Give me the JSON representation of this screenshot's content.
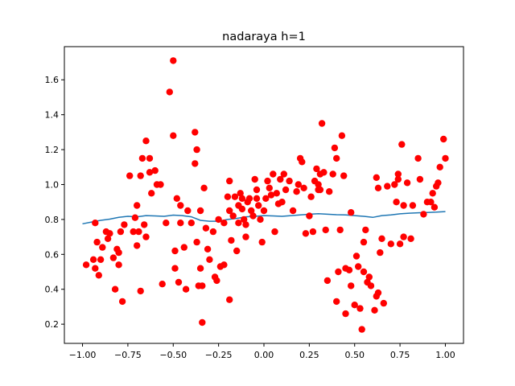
{
  "chart_data": {
    "type": "scatter",
    "title": "nadaraya h=1",
    "xlabel": "",
    "ylabel": "",
    "xlim": [
      -1.1,
      1.1
    ],
    "ylim": [
      0.09,
      1.79
    ],
    "x_ticks": [
      -1.0,
      -0.75,
      -0.5,
      -0.25,
      0.0,
      0.25,
      0.5,
      0.75,
      1.0
    ],
    "x_tick_labels": [
      "−1.00",
      "−0.75",
      "−0.50",
      "−0.25",
      "0.00",
      "0.25",
      "0.50",
      "0.75",
      "1.00"
    ],
    "y_ticks": [
      0.2,
      0.4,
      0.6,
      0.8,
      1.0,
      1.2,
      1.4,
      1.6
    ],
    "y_tick_labels": [
      "0.2",
      "0.4",
      "0.6",
      "0.8",
      "1.0",
      "1.2",
      "1.4",
      "1.6"
    ],
    "grid": false,
    "series": [
      {
        "kind": "scatter",
        "color": "#ff0000",
        "points": [
          [
            -0.98,
            0.54
          ],
          [
            -0.94,
            0.57
          ],
          [
            -0.93,
            0.52
          ],
          [
            -0.93,
            0.78
          ],
          [
            -0.92,
            0.67
          ],
          [
            -0.91,
            0.48
          ],
          [
            -0.9,
            0.57
          ],
          [
            -0.89,
            0.64
          ],
          [
            -0.87,
            0.73
          ],
          [
            -0.86,
            0.69
          ],
          [
            -0.85,
            0.72
          ],
          [
            -0.83,
            0.58
          ],
          [
            -0.82,
            0.4
          ],
          [
            -0.81,
            0.63
          ],
          [
            -0.8,
            0.61
          ],
          [
            -0.8,
            0.54
          ],
          [
            -0.79,
            0.73
          ],
          [
            -0.78,
            0.33
          ],
          [
            -0.77,
            0.77
          ],
          [
            -0.74,
            1.05
          ],
          [
            -0.72,
            0.73
          ],
          [
            -0.71,
            0.81
          ],
          [
            -0.7,
            0.88
          ],
          [
            -0.7,
            0.65
          ],
          [
            -0.69,
            0.73
          ],
          [
            -0.68,
            1.05
          ],
          [
            -0.68,
            0.39
          ],
          [
            -0.67,
            1.15
          ],
          [
            -0.66,
            0.77
          ],
          [
            -0.65,
            0.7
          ],
          [
            -0.65,
            1.25
          ],
          [
            -0.63,
            1.15
          ],
          [
            -0.63,
            1.07
          ],
          [
            -0.62,
            0.95
          ],
          [
            -0.6,
            1.08
          ],
          [
            -0.59,
            1.0
          ],
          [
            -0.57,
            1.0
          ],
          [
            -0.56,
            0.43
          ],
          [
            -0.54,
            0.78
          ],
          [
            -0.52,
            1.53
          ],
          [
            -0.5,
            1.71
          ],
          [
            -0.5,
            1.28
          ],
          [
            -0.49,
            0.62
          ],
          [
            -0.49,
            0.52
          ],
          [
            -0.48,
            0.92
          ],
          [
            -0.47,
            0.44
          ],
          [
            -0.46,
            0.78
          ],
          [
            -0.46,
            0.88
          ],
          [
            -0.44,
            0.64
          ],
          [
            -0.43,
            0.4
          ],
          [
            -0.42,
            0.85
          ],
          [
            -0.4,
            0.78
          ],
          [
            -0.38,
            1.3
          ],
          [
            -0.38,
            1.12
          ],
          [
            -0.37,
            0.67
          ],
          [
            -0.37,
            1.2
          ],
          [
            -0.36,
            0.42
          ],
          [
            -0.35,
            0.85
          ],
          [
            -0.35,
            0.52
          ],
          [
            -0.34,
            0.42
          ],
          [
            -0.34,
            0.21
          ],
          [
            -0.33,
            0.98
          ],
          [
            -0.32,
            0.75
          ],
          [
            -0.31,
            0.63
          ],
          [
            -0.3,
            0.57
          ],
          [
            -0.28,
            0.73
          ],
          [
            -0.27,
            0.47
          ],
          [
            -0.26,
            0.45
          ],
          [
            -0.25,
            0.8
          ],
          [
            -0.24,
            0.53
          ],
          [
            -0.22,
            0.54
          ],
          [
            -0.22,
            0.78
          ],
          [
            -0.2,
            0.93
          ],
          [
            -0.19,
            1.02
          ],
          [
            -0.19,
            0.34
          ],
          [
            -0.19,
            0.85
          ],
          [
            -0.18,
            0.68
          ],
          [
            -0.17,
            0.82
          ],
          [
            -0.16,
            0.93
          ],
          [
            -0.15,
            0.62
          ],
          [
            -0.14,
            0.88
          ],
          [
            -0.14,
            0.78
          ],
          [
            -0.13,
            0.95
          ],
          [
            -0.12,
            0.92
          ],
          [
            -0.12,
            0.86
          ],
          [
            -0.11,
            0.8
          ],
          [
            -0.1,
            0.7
          ],
          [
            -0.1,
            0.77
          ],
          [
            -0.09,
            0.9
          ],
          [
            -0.08,
            0.92
          ],
          [
            -0.07,
            0.85
          ],
          [
            -0.06,
            0.82
          ],
          [
            -0.05,
            1.03
          ],
          [
            -0.04,
            0.92
          ],
          [
            -0.04,
            0.97
          ],
          [
            -0.03,
            0.88
          ],
          [
            -0.02,
            0.8
          ],
          [
            -0.01,
            0.67
          ],
          [
            0.0,
            0.85
          ],
          [
            0.01,
            0.92
          ],
          [
            0.02,
            1.02
          ],
          [
            0.03,
            0.98
          ],
          [
            0.04,
            0.94
          ],
          [
            0.05,
            1.06
          ],
          [
            0.06,
            0.73
          ],
          [
            0.07,
            0.95
          ],
          [
            0.08,
            0.89
          ],
          [
            0.09,
            1.03
          ],
          [
            0.1,
            0.9
          ],
          [
            0.11,
            1.06
          ],
          [
            0.12,
            0.97
          ],
          [
            0.14,
            1.02
          ],
          [
            0.16,
            0.85
          ],
          [
            0.18,
            0.96
          ],
          [
            0.19,
            1.0
          ],
          [
            0.2,
            1.15
          ],
          [
            0.21,
            1.13
          ],
          [
            0.22,
            0.98
          ],
          [
            0.23,
            0.72
          ],
          [
            0.25,
            0.82
          ],
          [
            0.26,
            0.93
          ],
          [
            0.27,
            0.73
          ],
          [
            0.28,
            1.02
          ],
          [
            0.29,
            1.09
          ],
          [
            0.3,
            0.97
          ],
          [
            0.3,
            1.0
          ],
          [
            0.31,
            0.97
          ],
          [
            0.31,
            1.06
          ],
          [
            0.32,
            1.35
          ],
          [
            0.33,
            1.07
          ],
          [
            0.34,
            0.74
          ],
          [
            0.35,
            0.45
          ],
          [
            0.36,
            0.96
          ],
          [
            0.38,
            1.06
          ],
          [
            0.39,
            1.21
          ],
          [
            0.4,
            1.15
          ],
          [
            0.4,
            0.33
          ],
          [
            0.41,
            0.5
          ],
          [
            0.42,
            0.74
          ],
          [
            0.43,
            1.28
          ],
          [
            0.44,
            1.05
          ],
          [
            0.45,
            0.52
          ],
          [
            0.45,
            0.26
          ],
          [
            0.47,
            0.51
          ],
          [
            0.48,
            0.84
          ],
          [
            0.48,
            0.42
          ],
          [
            0.5,
            0.31
          ],
          [
            0.51,
            0.59
          ],
          [
            0.52,
            0.53
          ],
          [
            0.53,
            0.29
          ],
          [
            0.54,
            0.17
          ],
          [
            0.55,
            0.67
          ],
          [
            0.55,
            0.5
          ],
          [
            0.56,
            0.74
          ],
          [
            0.57,
            0.44
          ],
          [
            0.58,
            0.47
          ],
          [
            0.59,
            0.42
          ],
          [
            0.61,
            0.28
          ],
          [
            0.62,
            0.36
          ],
          [
            0.62,
            1.04
          ],
          [
            0.63,
            0.98
          ],
          [
            0.63,
            0.38
          ],
          [
            0.64,
            0.61
          ],
          [
            0.65,
            0.69
          ],
          [
            0.66,
            0.32
          ],
          [
            0.68,
            0.99
          ],
          [
            0.7,
            0.66
          ],
          [
            0.72,
            1.0
          ],
          [
            0.73,
            0.9
          ],
          [
            0.74,
            1.06
          ],
          [
            0.74,
            1.03
          ],
          [
            0.75,
            0.66
          ],
          [
            0.76,
            1.23
          ],
          [
            0.77,
            0.88
          ],
          [
            0.77,
            0.7
          ],
          [
            0.79,
            1.01
          ],
          [
            0.81,
            0.69
          ],
          [
            0.82,
            0.88
          ],
          [
            0.85,
            1.15
          ],
          [
            0.86,
            1.03
          ],
          [
            0.88,
            0.83
          ],
          [
            0.9,
            0.9
          ],
          [
            0.92,
            0.9
          ],
          [
            0.93,
            0.95
          ],
          [
            0.94,
            0.87
          ],
          [
            0.95,
            0.99
          ],
          [
            0.96,
            1.01
          ],
          [
            0.97,
            1.1
          ],
          [
            0.99,
            1.26
          ],
          [
            1.0,
            1.15
          ]
        ]
      },
      {
        "kind": "line",
        "color": "#1f77b4",
        "points": [
          [
            -1.0,
            0.775
          ],
          [
            -0.95,
            0.785
          ],
          [
            -0.9,
            0.795
          ],
          [
            -0.85,
            0.802
          ],
          [
            -0.8,
            0.812
          ],
          [
            -0.75,
            0.818
          ],
          [
            -0.7,
            0.815
          ],
          [
            -0.65,
            0.822
          ],
          [
            -0.6,
            0.82
          ],
          [
            -0.55,
            0.818
          ],
          [
            -0.5,
            0.825
          ],
          [
            -0.45,
            0.822
          ],
          [
            -0.4,
            0.815
          ],
          [
            -0.35,
            0.795
          ],
          [
            -0.3,
            0.79
          ],
          [
            -0.25,
            0.79
          ],
          [
            -0.2,
            0.8
          ],
          [
            -0.15,
            0.806
          ],
          [
            -0.1,
            0.815
          ],
          [
            -0.05,
            0.818
          ],
          [
            0.0,
            0.822
          ],
          [
            0.05,
            0.82
          ],
          [
            0.1,
            0.818
          ],
          [
            0.15,
            0.822
          ],
          [
            0.2,
            0.826
          ],
          [
            0.25,
            0.83
          ],
          [
            0.3,
            0.833
          ],
          [
            0.35,
            0.83
          ],
          [
            0.4,
            0.827
          ],
          [
            0.45,
            0.826
          ],
          [
            0.5,
            0.822
          ],
          [
            0.55,
            0.818
          ],
          [
            0.6,
            0.812
          ],
          [
            0.65,
            0.822
          ],
          [
            0.7,
            0.826
          ],
          [
            0.75,
            0.832
          ],
          [
            0.8,
            0.836
          ],
          [
            0.85,
            0.838
          ],
          [
            0.9,
            0.84
          ],
          [
            0.95,
            0.842
          ],
          [
            1.0,
            0.845
          ]
        ]
      }
    ]
  }
}
